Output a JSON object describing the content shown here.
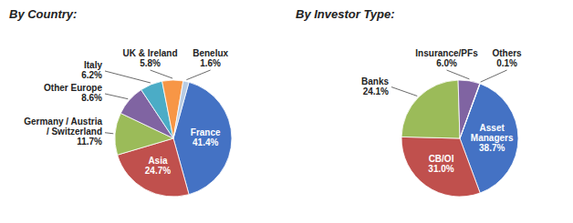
{
  "chart_data": [
    {
      "type": "pie",
      "title": "By Country:",
      "categories": [
        "France",
        "Asia",
        "Germany / Austria / Switzerland",
        "Other Europe",
        "Italy",
        "UK & Ireland",
        "Benelux"
      ],
      "values": [
        41.4,
        24.7,
        11.7,
        8.6,
        6.2,
        5.8,
        1.6
      ],
      "value_labels": [
        "41.4%",
        "24.7%",
        "11.7%",
        "8.6%",
        "6.2%",
        "5.8%",
        "1.6%"
      ],
      "colors": [
        "#4472C4",
        "#C0504D",
        "#9BBB59",
        "#8064A2",
        "#4BACC6",
        "#F79646",
        "#B8CCE4"
      ],
      "data_labels": true
    },
    {
      "type": "pie",
      "title": "By Investor Type:",
      "categories": [
        "Asset Managers",
        "CB/OI",
        "Banks",
        "Insurance/PFs",
        "Others"
      ],
      "values": [
        38.7,
        31.0,
        24.1,
        6.0,
        0.1
      ],
      "value_labels": [
        "38.7%",
        "31.0%",
        "24.1%",
        "6.0%",
        "0.1%"
      ],
      "colors": [
        "#4472C4",
        "#C0504D",
        "#9BBB59",
        "#8064A2",
        "#B8CCE4"
      ],
      "data_labels": true
    }
  ]
}
